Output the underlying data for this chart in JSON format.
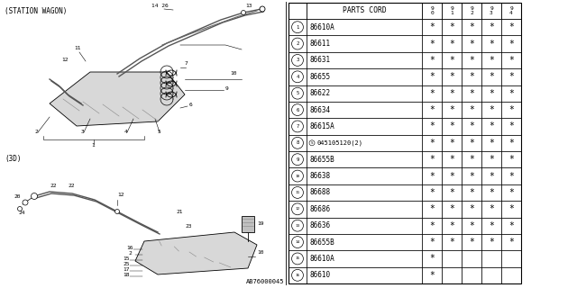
{
  "diagram_label_top": "(STATION WAGON)",
  "diagram_label_bottom": "(3D)",
  "watermark": "AB76000045",
  "table_header_col1": "PARTS CORD",
  "table_col_headers": [
    "9\n0",
    "9\n1",
    "9\n2",
    "9\n3",
    "9\n4"
  ],
  "table_rows": [
    {
      "num": "1",
      "code": "86610A",
      "stars": [
        1,
        1,
        1,
        1,
        1
      ]
    },
    {
      "num": "2",
      "code": "86611",
      "stars": [
        1,
        1,
        1,
        1,
        1
      ]
    },
    {
      "num": "3",
      "code": "86631",
      "stars": [
        1,
        1,
        1,
        1,
        1
      ]
    },
    {
      "num": "4",
      "code": "86655",
      "stars": [
        1,
        1,
        1,
        1,
        1
      ]
    },
    {
      "num": "5",
      "code": "86622",
      "stars": [
        1,
        1,
        1,
        1,
        1
      ]
    },
    {
      "num": "6",
      "code": "86634",
      "stars": [
        1,
        1,
        1,
        1,
        1
      ]
    },
    {
      "num": "7",
      "code": "86615A",
      "stars": [
        1,
        1,
        1,
        1,
        1
      ]
    },
    {
      "num": "8",
      "code": "S045105120(2)",
      "stars": [
        1,
        1,
        1,
        1,
        1
      ]
    },
    {
      "num": "9",
      "code": "86655B",
      "stars": [
        1,
        1,
        1,
        1,
        1
      ]
    },
    {
      "num": "10",
      "code": "86638",
      "stars": [
        1,
        1,
        1,
        1,
        1
      ]
    },
    {
      "num": "11",
      "code": "86688",
      "stars": [
        1,
        1,
        1,
        1,
        1
      ]
    },
    {
      "num": "12",
      "code": "86686",
      "stars": [
        1,
        1,
        1,
        1,
        1
      ]
    },
    {
      "num": "13",
      "code": "86636",
      "stars": [
        1,
        1,
        1,
        1,
        1
      ]
    },
    {
      "num": "14",
      "code": "86655B",
      "stars": [
        1,
        1,
        1,
        1,
        1
      ]
    },
    {
      "num": "15",
      "code": "86610A",
      "stars": [
        1,
        0,
        0,
        0,
        0
      ]
    },
    {
      "num": "16",
      "code": "86610",
      "stars": [
        1,
        0,
        0,
        0,
        0
      ]
    }
  ],
  "bg_color": "#ffffff",
  "line_color": "#000000",
  "text_color": "#000000"
}
